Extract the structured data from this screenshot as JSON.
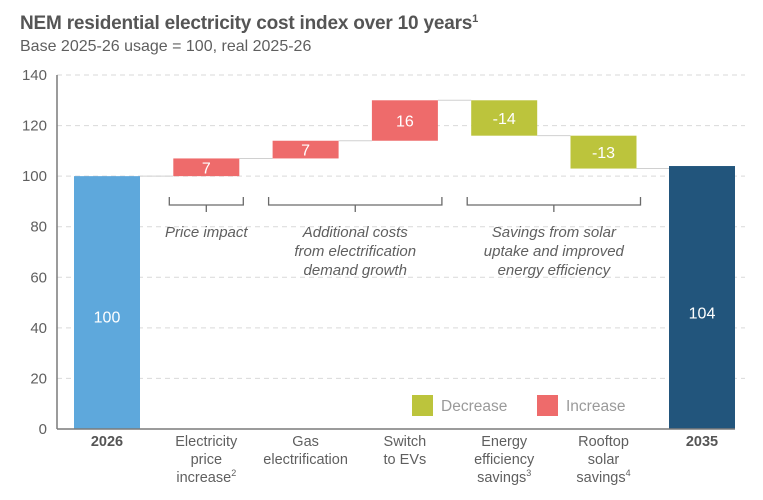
{
  "header": {
    "title": "NEM residential electricity cost index over 10 years",
    "title_footnote": "1",
    "subtitle": "Base 2025-26 usage = 100, real 2025-26"
  },
  "colors": {
    "start_bar": "#5ea8dc",
    "end_bar": "#22557c",
    "increase": "#ee6b6b",
    "decrease": "#bcc43c",
    "axis": "#7a7a7a",
    "grid": "#d9d9d9",
    "connector": "#d0d0d0",
    "bracket": "#6a6a6a"
  },
  "chart_data": {
    "type": "waterfall",
    "title": "NEM residential electricity cost index over 10 years",
    "subtitle": "Base 2025-26 usage = 100, real 2025-26",
    "xlabel": "",
    "ylabel": "",
    "ylim": [
      0,
      140
    ],
    "yticks": [
      0,
      20,
      40,
      60,
      80,
      100,
      120,
      140
    ],
    "grid": true,
    "categories": [
      {
        "lines": [
          "2026"
        ],
        "sup": "",
        "bold": true
      },
      {
        "lines": [
          "Electricity",
          "price",
          "increase"
        ],
        "sup": "2",
        "bold": false
      },
      {
        "lines": [
          "Gas",
          "electrification"
        ],
        "sup": "",
        "bold": false
      },
      {
        "lines": [
          "Switch",
          "to EVs"
        ],
        "sup": "",
        "bold": false
      },
      {
        "lines": [
          "Energy",
          "efficiency",
          "savings"
        ],
        "sup": "3",
        "bold": false
      },
      {
        "lines": [
          "Rooftop",
          "solar",
          "savings"
        ],
        "sup": "4",
        "bold": false
      },
      {
        "lines": [
          "2035"
        ],
        "sup": "",
        "bold": true
      }
    ],
    "steps": [
      {
        "kind": "total",
        "value": 100,
        "label": "100",
        "color_key": "start_bar"
      },
      {
        "kind": "increase",
        "value": 7,
        "label": "7",
        "color_key": "increase"
      },
      {
        "kind": "increase",
        "value": 7,
        "label": "7",
        "color_key": "increase"
      },
      {
        "kind": "increase",
        "value": 16,
        "label": "16",
        "color_key": "increase"
      },
      {
        "kind": "decrease",
        "value": -14,
        "label": "-14",
        "color_key": "decrease"
      },
      {
        "kind": "decrease",
        "value": -13,
        "label": "-13",
        "color_key": "decrease"
      },
      {
        "kind": "total",
        "value": 104,
        "label": "104",
        "color_key": "end_bar"
      }
    ],
    "annotations": [
      {
        "from_index": 1,
        "to_index": 1,
        "lines": [
          "Price impact"
        ]
      },
      {
        "from_index": 2,
        "to_index": 3,
        "lines": [
          "Additional costs",
          "from electrification",
          "demand growth"
        ]
      },
      {
        "from_index": 4,
        "to_index": 5,
        "lines": [
          "Savings from solar",
          "uptake and improved",
          "energy efficiency"
        ]
      }
    ],
    "legend": {
      "position": "bottom-right",
      "items": [
        {
          "label": "Decrease",
          "color_key": "decrease"
        },
        {
          "label": "Increase",
          "color_key": "increase"
        }
      ]
    }
  }
}
